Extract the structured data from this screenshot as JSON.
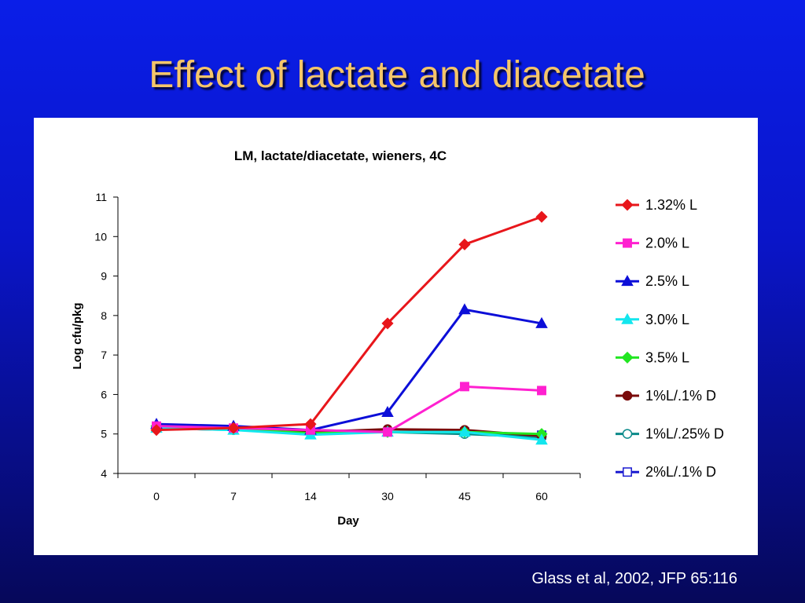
{
  "slide": {
    "title": "Effect of lactate and diacetate",
    "citation": "Glass et al, 2002, JFP 65:116"
  },
  "colors": {
    "title_text": "#f4c56a",
    "background_top": "#0a1ee8",
    "background_bottom": "#06085a",
    "panel": "#ffffff"
  },
  "chart_data": {
    "type": "line",
    "title": "LM, lactate/diacetate, wieners, 4C",
    "xlabel": "Day",
    "ylabel": "Log cfu/pkg",
    "categories": [
      "0",
      "7",
      "14",
      "30",
      "45",
      "60"
    ],
    "ylim": [
      4,
      11
    ],
    "yticks": [
      4,
      5,
      6,
      7,
      8,
      9,
      10,
      11
    ],
    "grid": false,
    "legend_position": "right",
    "series": [
      {
        "name": "1.32% L",
        "color": "#e8161b",
        "marker": "diamond",
        "fill": true,
        "values": [
          5.1,
          5.15,
          5.25,
          7.8,
          9.8,
          10.5
        ]
      },
      {
        "name": "2.0% L",
        "color": "#ff20d0",
        "marker": "square",
        "fill": true,
        "values": [
          5.2,
          5.15,
          5.1,
          5.05,
          6.2,
          6.1
        ]
      },
      {
        "name": "2.5% L",
        "color": "#0c0ed8",
        "marker": "triangle",
        "fill": true,
        "values": [
          5.25,
          5.2,
          5.1,
          5.55,
          8.15,
          7.8
        ]
      },
      {
        "name": "3.0% L",
        "color": "#13e6ee",
        "marker": "triangle",
        "fill": true,
        "values": [
          5.15,
          5.1,
          4.98,
          5.05,
          5.05,
          4.85
        ]
      },
      {
        "name": "3.5% L",
        "color": "#22e622",
        "marker": "diamond",
        "fill": true,
        "values": [
          5.2,
          5.12,
          5.02,
          5.05,
          5.05,
          5.0
        ]
      },
      {
        "name": "1%L/.1% D",
        "color": "#7a0a0a",
        "marker": "circle",
        "fill": true,
        "values": [
          5.17,
          5.15,
          5.05,
          5.12,
          5.1,
          4.95
        ]
      },
      {
        "name": "1%L/.25% D",
        "color": "#0a8a8a",
        "marker": "circle",
        "fill": false,
        "values": [
          5.15,
          5.1,
          5.05,
          5.05,
          5.0,
          4.92
        ]
      },
      {
        "name": "2%L/.1% D",
        "color": "#1a1ad0",
        "marker": "square",
        "fill": false,
        "values": [
          5.17,
          5.12,
          5.1,
          5.05,
          5.05,
          4.97
        ]
      }
    ]
  }
}
